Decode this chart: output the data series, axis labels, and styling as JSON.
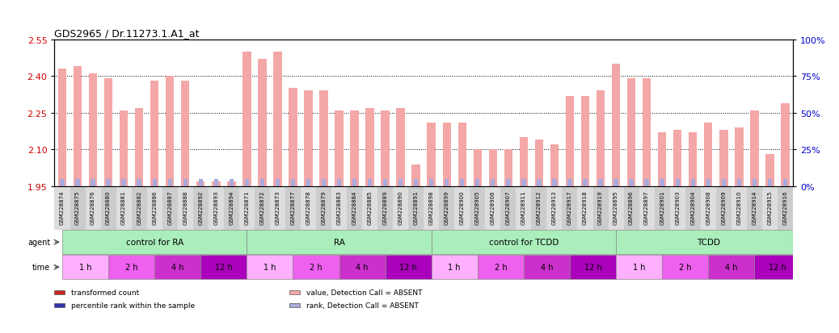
{
  "title": "GDS2965 / Dr.11273.1.A1_at",
  "samples": [
    "GSM228874",
    "GSM228875",
    "GSM228876",
    "GSM228880",
    "GSM228881",
    "GSM228882",
    "GSM228886",
    "GSM228887",
    "GSM228888",
    "GSM228892",
    "GSM228893",
    "GSM228894",
    "GSM228871",
    "GSM228872",
    "GSM228873",
    "GSM228877",
    "GSM228878",
    "GSM228879",
    "GSM228883",
    "GSM228884",
    "GSM228885",
    "GSM228889",
    "GSM228890",
    "GSM228891",
    "GSM228898",
    "GSM228899",
    "GSM228900",
    "GSM228905",
    "GSM228906",
    "GSM228907",
    "GSM228911",
    "GSM228912",
    "GSM228913",
    "GSM228917",
    "GSM228918",
    "GSM228919",
    "GSM228895",
    "GSM228896",
    "GSM228897",
    "GSM228901",
    "GSM228903",
    "GSM228904",
    "GSM228908",
    "GSM228909",
    "GSM228910",
    "GSM228914",
    "GSM228915",
    "GSM228916"
  ],
  "values": [
    2.43,
    2.44,
    2.41,
    2.39,
    2.26,
    2.27,
    2.38,
    2.4,
    2.38,
    1.97,
    1.97,
    1.97,
    2.5,
    2.47,
    2.5,
    2.35,
    2.34,
    2.34,
    2.26,
    2.26,
    2.27,
    2.26,
    2.27,
    2.04,
    2.21,
    2.21,
    2.21,
    2.1,
    2.1,
    2.1,
    2.15,
    2.14,
    2.12,
    2.32,
    2.32,
    2.34,
    2.45,
    2.39,
    2.39,
    2.17,
    2.18,
    2.17,
    2.21,
    2.18,
    2.19,
    2.26,
    2.08,
    2.29
  ],
  "ranks": [
    5,
    5,
    5,
    5,
    5,
    5,
    5,
    5,
    5,
    5,
    5,
    5,
    5,
    5,
    5,
    5,
    5,
    5,
    5,
    5,
    5,
    5,
    5,
    5,
    5,
    5,
    5,
    5,
    5,
    5,
    5,
    5,
    5,
    5,
    5,
    5,
    5,
    5,
    5,
    5,
    5,
    5,
    5,
    5,
    5,
    5,
    5,
    5
  ],
  "absent_value": [
    true,
    true,
    true,
    true,
    true,
    true,
    true,
    true,
    true,
    true,
    true,
    true,
    true,
    true,
    true,
    true,
    true,
    true,
    true,
    true,
    true,
    true,
    true,
    true,
    true,
    true,
    true,
    true,
    true,
    true,
    true,
    true,
    true,
    true,
    true,
    true,
    true,
    true,
    true,
    true,
    true,
    true,
    true,
    true,
    true,
    true,
    true,
    true
  ],
  "absent_rank": [
    true,
    true,
    true,
    true,
    true,
    true,
    true,
    true,
    true,
    true,
    true,
    true,
    true,
    true,
    true,
    true,
    true,
    true,
    true,
    true,
    true,
    true,
    true,
    true,
    true,
    true,
    true,
    true,
    true,
    true,
    true,
    true,
    true,
    true,
    true,
    true,
    true,
    true,
    true,
    true,
    true,
    true,
    true,
    true,
    true,
    true,
    true,
    true
  ],
  "ylim_left": [
    1.95,
    2.55
  ],
  "ylim_right": [
    0,
    100
  ],
  "yticks_left": [
    1.95,
    2.1,
    2.25,
    2.4,
    2.55
  ],
  "yticks_right": [
    0,
    25,
    50,
    75,
    100
  ],
  "bar_color_absent": "#F4A7A7",
  "bar_color_present": "#CC2222",
  "rank_color_present": "#3333AA",
  "rank_color_absent": "#AAAADD",
  "baseline": 1.95,
  "agent_groups": [
    {
      "label": "control for RA",
      "start": 0,
      "end": 12,
      "color": "#AAEEBB"
    },
    {
      "label": "RA",
      "start": 12,
      "end": 24,
      "color": "#AAEEBB"
    },
    {
      "label": "control for TCDD",
      "start": 24,
      "end": 36,
      "color": "#AAEEBB"
    },
    {
      "label": "TCDD",
      "start": 36,
      "end": 48,
      "color": "#AAEEBB"
    }
  ],
  "time_groups": [
    {
      "label": "1 h",
      "start": 0,
      "end": 3,
      "color": "#FFB0FF"
    },
    {
      "label": "2 h",
      "start": 3,
      "end": 6,
      "color": "#EE60EE"
    },
    {
      "label": "4 h",
      "start": 6,
      "end": 9,
      "color": "#CC30CC"
    },
    {
      "label": "12 h",
      "start": 9,
      "end": 12,
      "color": "#AA00BB"
    },
    {
      "label": "1 h",
      "start": 12,
      "end": 15,
      "color": "#FFB0FF"
    },
    {
      "label": "2 h",
      "start": 15,
      "end": 18,
      "color": "#EE60EE"
    },
    {
      "label": "4 h",
      "start": 18,
      "end": 21,
      "color": "#CC30CC"
    },
    {
      "label": "12 h",
      "start": 21,
      "end": 24,
      "color": "#AA00BB"
    },
    {
      "label": "1 h",
      "start": 24,
      "end": 27,
      "color": "#FFB0FF"
    },
    {
      "label": "2 h",
      "start": 27,
      "end": 30,
      "color": "#EE60EE"
    },
    {
      "label": "4 h",
      "start": 30,
      "end": 33,
      "color": "#CC30CC"
    },
    {
      "label": "12 h",
      "start": 33,
      "end": 36,
      "color": "#AA00BB"
    },
    {
      "label": "1 h",
      "start": 36,
      "end": 39,
      "color": "#FFB0FF"
    },
    {
      "label": "2 h",
      "start": 39,
      "end": 42,
      "color": "#EE60EE"
    },
    {
      "label": "4 h",
      "start": 42,
      "end": 45,
      "color": "#CC30CC"
    },
    {
      "label": "12 h",
      "start": 45,
      "end": 48,
      "color": "#AA00BB"
    }
  ],
  "legend_items": [
    {
      "label": "transformed count",
      "color": "#CC2222"
    },
    {
      "label": "percentile rank within the sample",
      "color": "#3333AA"
    },
    {
      "label": "value, Detection Call = ABSENT",
      "color": "#F4A7A7"
    },
    {
      "label": "rank, Detection Call = ABSENT",
      "color": "#AAAADD"
    }
  ],
  "background_color": "#FFFFFF",
  "tick_label_color_left": "#CC0000",
  "tick_label_color_right": "#0000CC",
  "xtick_bg": "#CCCCCC",
  "agent_bg": "#CCCCCC",
  "time_bg": "#CCCCCC"
}
